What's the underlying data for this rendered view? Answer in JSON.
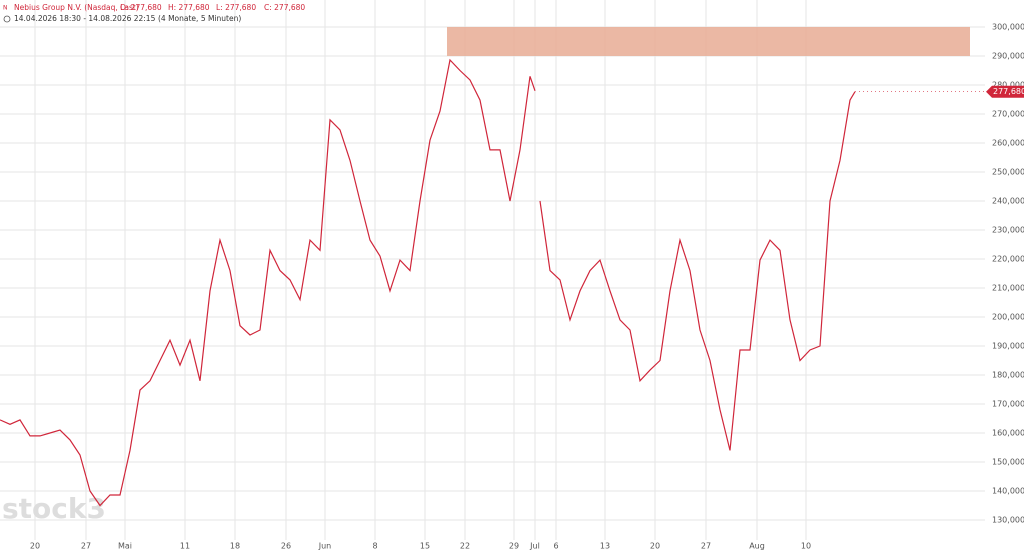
{
  "chart_data": {
    "type": "line",
    "title": "Nebius Group N.V. (Nasdaq, Last)",
    "header_fields": [
      "O: 277,680",
      "H: 277,680",
      "L: 277,680",
      "C: 277,680"
    ],
    "subtitle": "14.04.2026 18:30 - 14.08.2026 22:15",
    "period": "(4 Monate, 5 Minuten)",
    "watermark": "stock3",
    "xlim": [
      0,
      98.5
    ],
    "ylim": [
      123100,
      309300
    ],
    "grid": true,
    "xticks": [
      {
        "value": 3.5,
        "label": "20"
      },
      {
        "value": 8.6,
        "label": "27"
      },
      {
        "value": 12.5,
        "label": "Mai"
      },
      {
        "value": 18.5,
        "label": "11"
      },
      {
        "value": 23.5,
        "label": "18"
      },
      {
        "value": 28.6,
        "label": "26"
      },
      {
        "value": 32.5,
        "label": "Jun"
      },
      {
        "value": 37.5,
        "label": "8"
      },
      {
        "value": 42.5,
        "label": "15"
      },
      {
        "value": 46.5,
        "label": "22"
      },
      {
        "value": 51.4,
        "label": "29"
      },
      {
        "value": 53.5,
        "label": "Jul"
      },
      {
        "value": 55.6,
        "label": "6"
      },
      {
        "value": 60.5,
        "label": "13"
      },
      {
        "value": 65.5,
        "label": "20"
      },
      {
        "value": 70.6,
        "label": "27"
      },
      {
        "value": 75.7,
        "label": "Aug"
      },
      {
        "value": 80.6,
        "label": "10"
      }
    ],
    "yticks": [
      {
        "value": 130000,
        "label": "130,000"
      },
      {
        "value": 140000,
        "label": "140,000"
      },
      {
        "value": 150000,
        "label": "150,000"
      },
      {
        "value": 160000,
        "label": "160,000"
      },
      {
        "value": 170000,
        "label": "170,000"
      },
      {
        "value": 180000,
        "label": "180,000"
      },
      {
        "value": 190000,
        "label": "190,000"
      },
      {
        "value": 200000,
        "label": "200,000"
      },
      {
        "value": 210000,
        "label": "210,000"
      },
      {
        "value": 220000,
        "label": "220,000"
      },
      {
        "value": 230000,
        "label": "230,000"
      },
      {
        "value": 240000,
        "label": "240,000"
      },
      {
        "value": 250000,
        "label": "250,000"
      },
      {
        "value": 260000,
        "label": "260,000"
      },
      {
        "value": 270000,
        "label": "270,000"
      },
      {
        "value": 280000,
        "label": "280,000"
      },
      {
        "value": 290000,
        "label": "290,000"
      },
      {
        "value": 300000,
        "label": "300,000"
      }
    ],
    "zone": {
      "from": 290000,
      "to": 300000,
      "x_from": 44.7,
      "x_to": 97,
      "color": "#e8ac94"
    },
    "x": [
      0,
      1,
      2,
      3,
      4,
      5,
      6,
      7,
      8,
      9,
      10,
      11,
      12,
      13,
      14,
      15,
      16,
      17,
      18,
      19,
      20,
      21,
      22,
      23,
      24,
      25,
      26,
      27,
      28,
      29,
      30,
      31,
      32,
      33,
      34,
      35,
      36,
      37,
      38,
      39,
      40,
      41,
      42,
      43,
      44,
      45,
      46,
      47,
      48,
      49,
      50,
      51,
      52,
      53,
      53.5,
      53.8,
      54,
      55,
      56,
      57,
      58,
      59,
      60,
      61,
      62,
      63,
      64,
      65,
      66,
      67,
      68,
      69,
      70,
      71,
      72,
      73,
      74,
      75,
      76,
      77,
      78,
      79,
      80,
      81,
      82,
      83,
      84,
      85,
      85.5
    ],
    "series": [
      {
        "name": "Nebius Group N.V.",
        "color": "#d0263a",
        "last_label": "277,680",
        "values": [
          164500,
          163000,
          164500,
          159000,
          159000,
          160000,
          161000,
          157600,
          152400,
          140000,
          135000,
          138600,
          138600,
          154000,
          174800,
          178000,
          185000,
          192000,
          183400,
          192000,
          178000,
          209000,
          226500,
          216000,
          197000,
          193800,
          195500,
          223000,
          216000,
          212800,
          206000,
          226500,
          223000,
          268000,
          264500,
          254000,
          240000,
          226500,
          221000,
          209000,
          219600,
          216000,
          240000,
          261000,
          271000,
          288600,
          285000,
          281700,
          274800,
          257600,
          257600,
          240000,
          257600,
          283000,
          278000,
          null,
          240000,
          216000,
          212800,
          199000,
          209000,
          216000,
          219600,
          209000,
          199000,
          195500,
          178000,
          181700,
          185000,
          209000,
          226500,
          216000,
          195500,
          185000,
          168000,
          154000,
          188600,
          188600,
          219600,
          226500,
          223000,
          199000,
          185000,
          188600,
          190000,
          240000,
          254000,
          274800,
          277680
        ]
      }
    ]
  }
}
